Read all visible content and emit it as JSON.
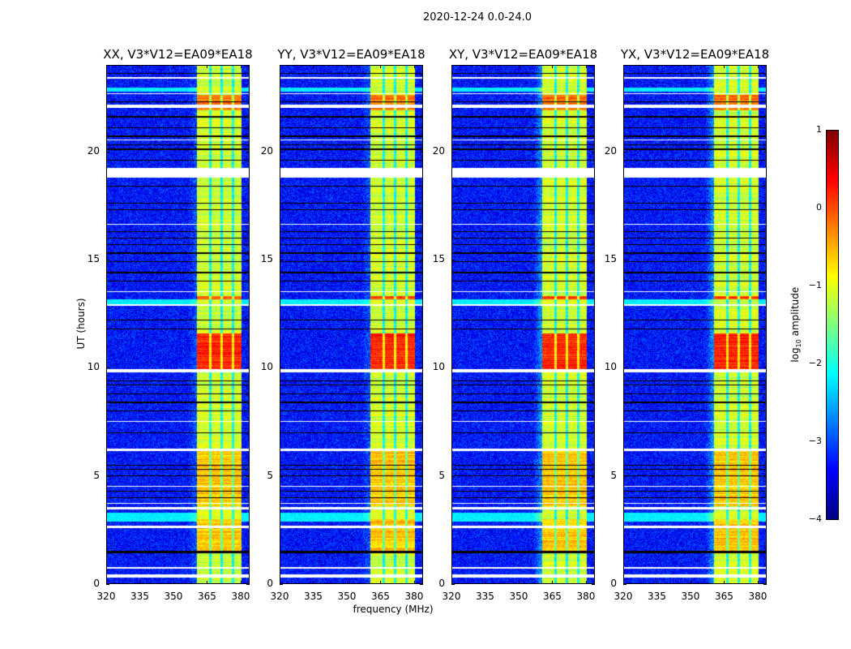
{
  "suptitle": "2020-12-24 0.0-24.0",
  "xlabel": "frequency (MHz)",
  "ylabel": "UT (hours)",
  "colorbar": {
    "label_prefix": "log",
    "label_sub": "10",
    "label_suffix": " amplitude",
    "ticks": [
      "1",
      "0",
      "−1",
      "−2",
      "−3",
      "−4"
    ],
    "range": [
      -4,
      1
    ],
    "colormap": "jet"
  },
  "chart_data": {
    "type": "heatmap",
    "title": "2020-12-24 0.0-24.0",
    "xlabel": "frequency (MHz)",
    "ylabel": "UT (hours)",
    "xlim": [
      320,
      384
    ],
    "ylim": [
      0,
      24
    ],
    "xticks": [
      "320",
      "335",
      "350",
      "365",
      "380"
    ],
    "xtick_values": [
      320,
      335,
      350,
      365,
      380
    ],
    "yticks": [
      "0",
      "5",
      "10",
      "15",
      "20"
    ],
    "ytick_values": [
      0,
      5,
      10,
      15,
      20
    ],
    "value_range": [
      -4,
      1
    ],
    "background_level": -3.3,
    "band_mhz": [
      360.5,
      380.5
    ],
    "channel_gaps_mhz": [
      366.5,
      371.5,
      376.5
    ],
    "band_level": -1.1,
    "flagged_white_hours": [
      [
        0.3,
        0.45
      ],
      [
        0.7,
        0.8
      ],
      [
        2.6,
        2.7
      ],
      [
        3.45,
        3.55
      ],
      [
        3.7,
        3.75
      ],
      [
        4.5,
        4.55
      ],
      [
        6.15,
        6.25
      ],
      [
        7.5,
        7.55
      ],
      [
        9.8,
        9.95
      ],
      [
        12.85,
        12.95
      ],
      [
        13.5,
        13.55
      ],
      [
        16.6,
        16.65
      ],
      [
        18.8,
        19.25
      ],
      [
        20.5,
        20.55
      ],
      [
        22.0,
        22.15
      ],
      [
        22.65,
        22.7
      ],
      [
        23.35,
        23.45
      ]
    ],
    "flagged_black_hours": [
      1.45,
      1.5,
      4.0,
      4.3,
      5.0,
      5.3,
      5.5,
      7.0,
      8.0,
      8.4,
      8.8,
      9.2,
      9.4,
      11.8,
      12.2,
      14.0,
      14.4,
      14.9,
      15.3,
      15.7,
      16.0,
      16.3,
      17.3,
      17.6,
      18.4,
      19.6,
      20.1,
      20.3,
      20.7,
      21.1,
      21.6,
      22.3,
      23.6
    ],
    "cyan_hours": [
      [
        2.9,
        3.3
      ],
      [
        12.95,
        13.15
      ],
      [
        22.75,
        22.95
      ]
    ],
    "hot_hours": [
      {
        "range": [
          9.9,
          11.6
        ],
        "level": 0.2
      },
      {
        "range": [
          21.9,
          22.6
        ],
        "level": -0.2
      },
      {
        "range": [
          13.15,
          13.3
        ],
        "level": 0.0
      },
      {
        "range": [
          1.5,
          3.0
        ],
        "level": -0.6
      },
      {
        "range": [
          3.6,
          6.2
        ],
        "level": -0.6
      }
    ],
    "panels": [
      {
        "title": "XX, V3*V12=EA09*EA18",
        "seed": 11
      },
      {
        "title": "YY, V3*V12=EA09*EA18",
        "seed": 23
      },
      {
        "title": "XY, V3*V12=EA09*EA18",
        "seed": 37
      },
      {
        "title": "YX, V3*V12=EA09*EA18",
        "seed": 51
      }
    ]
  }
}
